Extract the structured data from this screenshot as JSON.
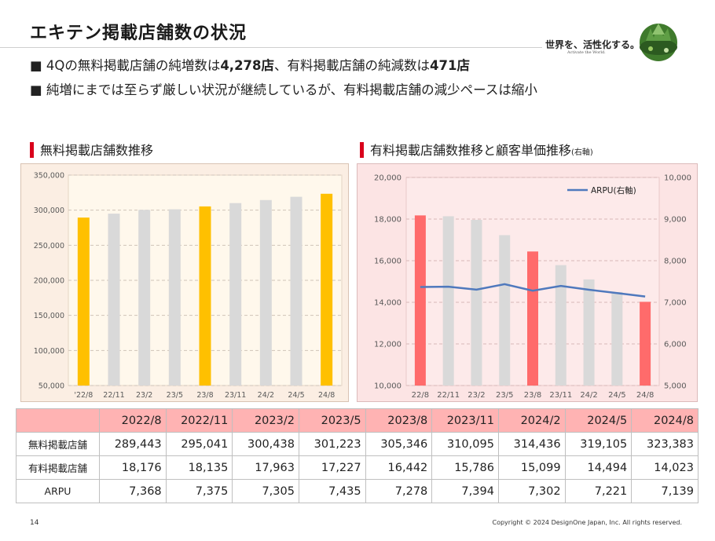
{
  "header": {
    "title": "エキテン掲載店舗数の状況",
    "logo_text": "世界を、活性化する。",
    "logo_sub": "Activate the World."
  },
  "bullets": {
    "b1_prefix": "■ 4Qの無料掲載店舗の純増数は",
    "b1_value1": "4,278店",
    "b1_mid": "、有料掲載店舗の純減数は",
    "b1_value2": "471店",
    "b2": "■ 純増にまでは至らず厳しい状況が継続しているが、有料掲載店舗の減少ペースは縮小"
  },
  "sections": {
    "left_title": "無料掲載店舗数推移",
    "right_title": "有料掲載店舗数推移と顧客単価推移",
    "right_title_note": "(右軸)"
  },
  "colors": {
    "free_highlight": "#ffc000",
    "free_normal": "#d9d9d9",
    "paid_highlight": "#ff6b6b",
    "paid_normal": "#d9d9d9",
    "arpu_line": "#4f79bd",
    "table_header": "#ffb3b3"
  },
  "chart_data": [
    {
      "type": "bar",
      "title": "無料掲載店舗数推移",
      "categories": [
        "'22/8",
        "22/11",
        "23/2",
        "23/5",
        "23/8",
        "23/11",
        "24/2",
        "24/5",
        "24/8"
      ],
      "values": [
        289443,
        295041,
        300438,
        301223,
        305346,
        310095,
        314436,
        319105,
        323383
      ],
      "highlight": [
        true,
        false,
        false,
        false,
        true,
        false,
        false,
        false,
        true
      ],
      "ylim": [
        50000,
        350000
      ],
      "yticks": [
        "50,000",
        "100,000",
        "150,000",
        "200,000",
        "250,000",
        "300,000",
        "350,000"
      ],
      "grid": true
    },
    {
      "type": "bar",
      "title": "有料掲載店舗数推移と顧客単価推移",
      "categories": [
        "22/8",
        "22/11",
        "23/2",
        "23/5",
        "23/8",
        "23/11",
        "24/2",
        "24/5",
        "24/8"
      ],
      "values": [
        18176,
        18135,
        17963,
        17227,
        16442,
        15786,
        15099,
        14494,
        14023
      ],
      "highlight": [
        true,
        false,
        false,
        false,
        true,
        false,
        false,
        false,
        true
      ],
      "ylim": [
        10000,
        20000
      ],
      "yticks": [
        "10,000",
        "12,000",
        "14,000",
        "16,000",
        "18,000",
        "20,000"
      ],
      "secondary": {
        "type": "line",
        "name": "ARPU(右軸)",
        "values": [
          7368,
          7375,
          7305,
          7435,
          7278,
          7394,
          7302,
          7221,
          7139
        ],
        "ylim": [
          5000,
          10000
        ],
        "yticks": [
          "5,000",
          "6,000",
          "7,000",
          "8,000",
          "9,000",
          "10,000"
        ]
      },
      "legend": "top-right",
      "grid": true
    }
  ],
  "table": {
    "headers": [
      "2022/8",
      "2022/11",
      "2023/2",
      "2023/5",
      "2023/8",
      "2023/11",
      "2024/2",
      "2024/5",
      "2024/8"
    ],
    "rows": [
      {
        "label": "無料掲載店舗",
        "values": [
          "289,443",
          "295,041",
          "300,438",
          "301,223",
          "305,346",
          "310,095",
          "314,436",
          "319,105",
          "323,383"
        ]
      },
      {
        "label": "有料掲載店舗",
        "values": [
          "18,176",
          "18,135",
          "17,963",
          "17,227",
          "16,442",
          "15,786",
          "15,099",
          "14,494",
          "14,023"
        ]
      },
      {
        "label": "ARPU",
        "values": [
          "7,368",
          "7,375",
          "7,305",
          "7,435",
          "7,278",
          "7,394",
          "7,302",
          "7,221",
          "7,139"
        ]
      }
    ]
  },
  "footer": {
    "page_number": "14",
    "copyright": "Copyright © 2024 DesignOne Japan, Inc. All rights reserved."
  }
}
